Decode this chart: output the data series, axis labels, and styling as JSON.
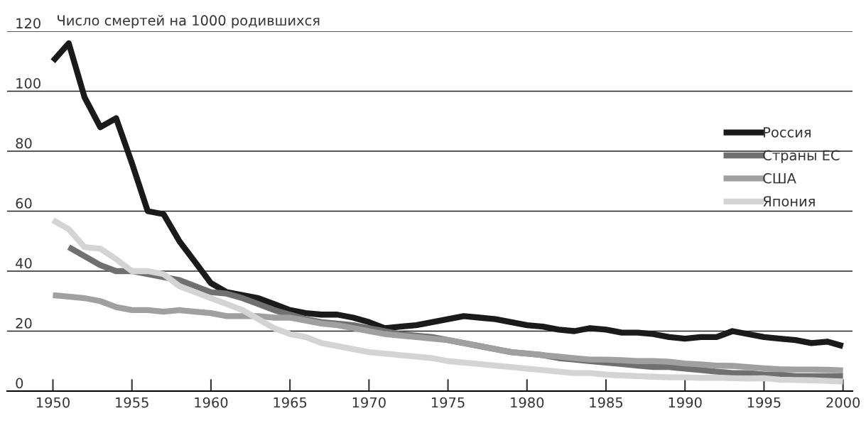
{
  "chart_data": {
    "type": "line",
    "ylabel": "Число смертей на 1000 родившихся",
    "x": [
      1950,
      1951,
      1952,
      1953,
      1954,
      1955,
      1956,
      1957,
      1958,
      1959,
      1960,
      1961,
      1962,
      1963,
      1964,
      1965,
      1966,
      1967,
      1968,
      1969,
      1970,
      1971,
      1972,
      1973,
      1974,
      1975,
      1976,
      1977,
      1978,
      1979,
      1980,
      1981,
      1982,
      1983,
      1984,
      1985,
      1986,
      1987,
      1988,
      1989,
      1990,
      1991,
      1992,
      1993,
      1994,
      1995,
      1996,
      1997,
      1998,
      1999,
      2000
    ],
    "series": [
      {
        "name": "Россия",
        "color": "#1a1a1a",
        "values": [
          110,
          116,
          98,
          88,
          91,
          76,
          60,
          59,
          50,
          43,
          36,
          33,
          32,
          31,
          29,
          27,
          26,
          25.5,
          25.5,
          24.5,
          23,
          21,
          21.5,
          22,
          23,
          24,
          25,
          24.5,
          24,
          23,
          22,
          21.5,
          20.5,
          20,
          21,
          20.5,
          19.5,
          19.5,
          19,
          18,
          17.5,
          18,
          18,
          20,
          19,
          18,
          17.5,
          17,
          16,
          16.5,
          15
        ]
      },
      {
        "name": "Страны ЕС",
        "color": "#707070",
        "values": [
          null,
          48,
          45,
          42,
          40,
          40,
          39,
          38,
          37,
          35,
          33,
          32.5,
          31,
          29,
          27,
          25.5,
          24,
          23,
          22.5,
          22,
          21,
          20,
          19,
          18.5,
          18,
          17,
          16,
          15,
          14,
          13,
          12.5,
          12,
          11,
          10.5,
          10,
          9.5,
          9,
          8.5,
          8,
          8,
          7.5,
          7,
          6.5,
          6,
          6,
          5.5,
          5.5,
          5,
          5,
          5,
          5
        ]
      },
      {
        "name": "США",
        "color": "#a0a0a0",
        "values": [
          32,
          31.5,
          31,
          30,
          28,
          27,
          27,
          26.5,
          27,
          26.5,
          26,
          25,
          25,
          25,
          24.5,
          24.5,
          23.5,
          22.5,
          22,
          21,
          20,
          19,
          18.5,
          18,
          17.5,
          17,
          16,
          15,
          14,
          13,
          12.5,
          12,
          11.5,
          11,
          10.5,
          10.5,
          10.3,
          10,
          10,
          9.8,
          9.2,
          8.9,
          8.5,
          8.4,
          8,
          7.6,
          7.3,
          7.2,
          7.2,
          7.1,
          6.9
        ]
      },
      {
        "name": "Япония",
        "color": "#d4d4d4",
        "values": [
          57,
          54,
          48,
          47.5,
          44,
          40,
          40,
          39,
          35,
          33,
          31,
          29,
          27,
          24,
          21,
          19,
          18,
          16,
          15,
          14,
          13,
          12.5,
          12,
          11.5,
          11,
          10,
          9.5,
          9,
          8.5,
          8,
          7.5,
          7,
          6.5,
          6,
          6,
          5.5,
          5.2,
          5,
          4.8,
          4.6,
          4.6,
          4.4,
          4.5,
          4.3,
          4.2,
          4.3,
          3.8,
          3.7,
          3.6,
          3.4,
          3.2
        ]
      }
    ],
    "xlim": [
      1947.1,
      2000.6
    ],
    "ylim": [
      0,
      120
    ],
    "xticks": [
      1950,
      1955,
      1960,
      1965,
      1970,
      1975,
      1980,
      1985,
      1990,
      1995,
      2000
    ],
    "yticks": [
      0,
      20,
      40,
      60,
      80,
      100,
      120
    ],
    "grid": "y",
    "legend": "right",
    "marker": "none",
    "line_style": "solid"
  }
}
